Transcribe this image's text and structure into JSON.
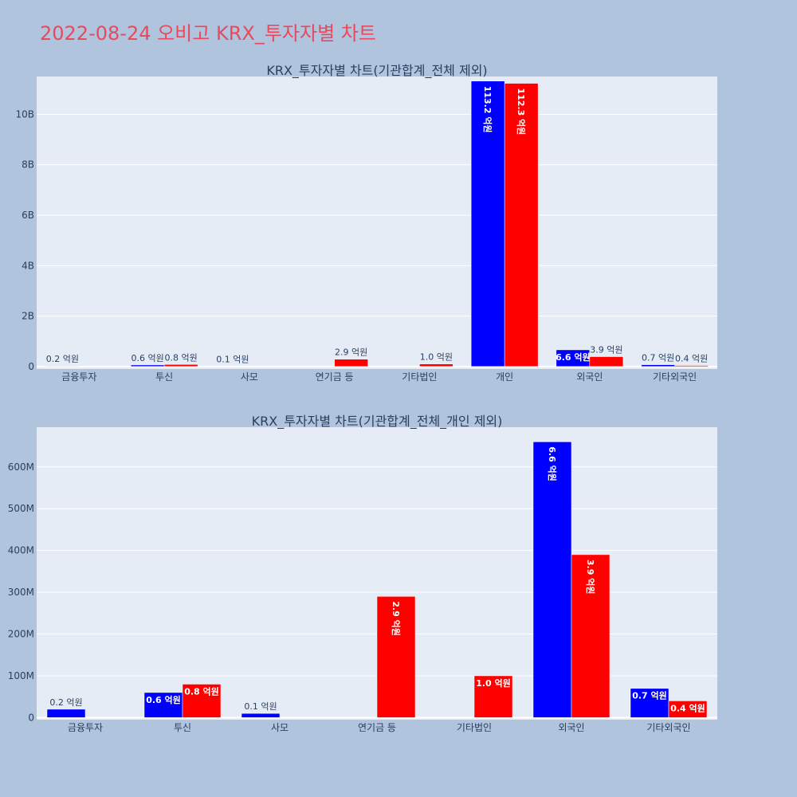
{
  "title": "2022-08-24 오비고 KRX_투자자별 차트",
  "colors": {
    "buy": "#0000ff",
    "sell": "#ff0000",
    "page_bg": "#b0c4de",
    "plot_bg": "#e5ecf6",
    "title": "#e8495c"
  },
  "chart_data": [
    {
      "type": "bar",
      "title": "KRX_투자자별 차트(기관합계_전체 제외)",
      "categories": [
        "금융투자",
        "투신",
        "사모",
        "연기금 등",
        "기타법인",
        "개인",
        "외국인",
        "기타외국인"
      ],
      "series": [
        {
          "values": [
            20000000,
            60000000,
            10000000,
            0,
            0,
            11320000000,
            660000000,
            70000000
          ],
          "labels": [
            "0.2 억원",
            "0.6 억원",
            "0.1 억원",
            "",
            "",
            "113.2 억원",
            "6.6 억원",
            "0.7 억원"
          ]
        },
        {
          "values": [
            0,
            80000000,
            0,
            290000000,
            100000000,
            11230000000,
            390000000,
            40000000
          ],
          "labels": [
            "",
            "0.8 억원",
            "",
            "2.9 억원",
            "1.0 억원",
            "112.3 억원",
            "3.9 억원",
            "0.4 억원"
          ]
        }
      ],
      "yticks": [
        "0",
        "2B",
        "4B",
        "6B",
        "8B",
        "10B"
      ],
      "ytick_values": [
        0,
        2000000000,
        4000000000,
        6000000000,
        8000000000,
        10000000000
      ],
      "ylim": [
        -100000000,
        11500000000
      ],
      "grid": true
    },
    {
      "type": "bar",
      "title": "KRX_투자자별 차트(기관합계_전체_개인 제외)",
      "categories": [
        "금융투자",
        "투신",
        "사모",
        "연기금 등",
        "기타법인",
        "외국인",
        "기타외국인"
      ],
      "series": [
        {
          "values": [
            20000000,
            60000000,
            10000000,
            0,
            0,
            660000000,
            70000000
          ],
          "labels": [
            "0.2 억원",
            "0.6 억원",
            "0.1 억원",
            "",
            "",
            "6.6 억원",
            "0.7 억원"
          ]
        },
        {
          "values": [
            0,
            80000000,
            0,
            290000000,
            100000000,
            390000000,
            40000000
          ],
          "labels": [
            "",
            "0.8 억원",
            "",
            "2.9 억원",
            "1.0 억원",
            "3.9 억원",
            "0.4 억원"
          ]
        }
      ],
      "yticks": [
        "0",
        "100M",
        "200M",
        "300M",
        "400M",
        "500M",
        "600M"
      ],
      "ytick_values": [
        0,
        100000000,
        200000000,
        300000000,
        400000000,
        500000000,
        600000000
      ],
      "ylim": [
        -5000000,
        695000000
      ],
      "grid": true
    }
  ]
}
